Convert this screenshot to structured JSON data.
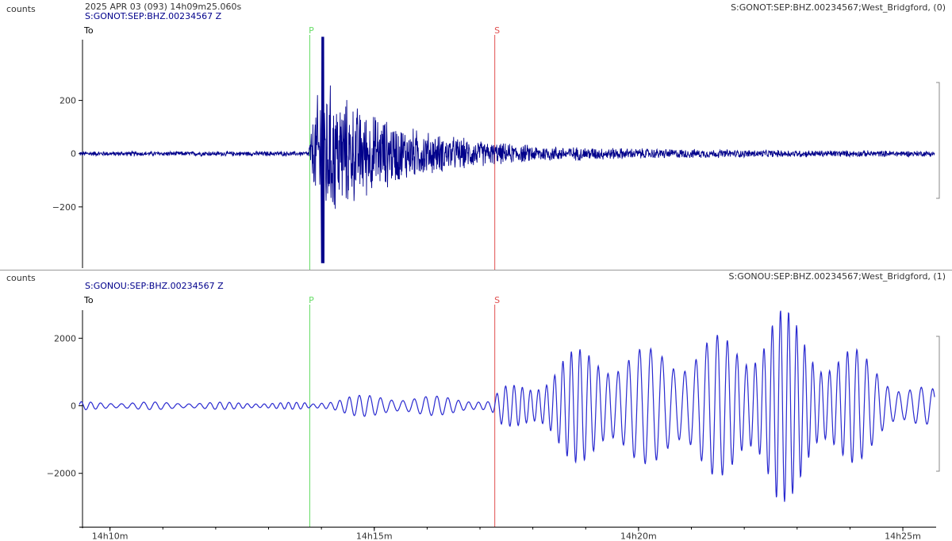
{
  "panels": [
    {
      "units": "counts",
      "header_time": "2025 APR 03 (093)  14h09m25.060s",
      "title": "S:GONOT:SEP:BHZ.00234567 Z",
      "right_label": "S:GONOT:SEP:BHZ.00234567;West_Bridgford, (0)",
      "colors": {
        "trace": "#00008b",
        "P": "#66dd66",
        "S": "#e05050",
        "axis": "#000000"
      }
    },
    {
      "units": "counts",
      "title": "S:GONOU:SEP:BHZ.00234567 Z",
      "right_label": "S:GONOU:SEP:BHZ.00234567;West_Bridgford, (1)",
      "colors": {
        "trace": "#2a2ad0",
        "P": "#66dd66",
        "S": "#e05050",
        "axis": "#000000"
      }
    }
  ],
  "markers": {
    "To": "To",
    "P": "P",
    "S": "S"
  },
  "chart_data": [
    {
      "type": "line",
      "title": "S:GONOT:SEP:BHZ.00234567 Z",
      "ylabel": "counts",
      "x_unit": "minutes after 14h00m",
      "xlim": [
        9.42,
        25.6
      ],
      "ylim": [
        -430,
        470
      ],
      "yticks": [
        200,
        0,
        -200
      ],
      "ytick_labels": [
        "200",
        "0",
        "−200"
      ],
      "picks": {
        "P": 13.78,
        "S": 17.28
      },
      "envelope": [
        {
          "x": 9.42,
          "amp": 10
        },
        {
          "x": 13.75,
          "amp": 10
        },
        {
          "x": 13.85,
          "amp": 160
        },
        {
          "x": 14.0,
          "amp": 330
        },
        {
          "x": 14.3,
          "amp": 250
        },
        {
          "x": 14.8,
          "amp": 180
        },
        {
          "x": 15.5,
          "amp": 120
        },
        {
          "x": 16.2,
          "amp": 80
        },
        {
          "x": 17.3,
          "amp": 45
        },
        {
          "x": 18.5,
          "amp": 30
        },
        {
          "x": 20.0,
          "amp": 22
        },
        {
          "x": 22.0,
          "amp": 16
        },
        {
          "x": 25.6,
          "amp": 12
        }
      ],
      "peak_max": 448,
      "peak_min": -420
    },
    {
      "type": "line",
      "title": "S:GONOU:SEP:BHZ.00234567 Z",
      "ylabel": "counts",
      "x_unit": "minutes after 14h00m",
      "xlim": [
        9.42,
        25.6
      ],
      "ylim": [
        -3580,
        3300
      ],
      "yticks": [
        2000,
        0,
        -2000
      ],
      "ytick_labels": [
        "2000",
        "0",
        "−2000"
      ],
      "xticks": [
        10,
        15,
        20,
        25
      ],
      "xtick_labels": [
        "14h10m",
        "14h15m",
        "14h20m",
        "14h25m"
      ],
      "picks": {
        "P": 13.78,
        "S": 17.28
      },
      "period_min": 0.2,
      "envelope": [
        {
          "x": 9.42,
          "amp": 120
        },
        {
          "x": 13.7,
          "amp": 100
        },
        {
          "x": 13.8,
          "amp": 60
        },
        {
          "x": 14.5,
          "amp": 320
        },
        {
          "x": 16.5,
          "amp": 280
        },
        {
          "x": 17.2,
          "amp": 150
        },
        {
          "x": 17.4,
          "amp": 550
        },
        {
          "x": 18.0,
          "amp": 800
        },
        {
          "x": 18.6,
          "amp": 1600
        },
        {
          "x": 19.5,
          "amp": 1900
        },
        {
          "x": 20.2,
          "amp": 1700
        },
        {
          "x": 20.8,
          "amp": 2000
        },
        {
          "x": 21.5,
          "amp": 2100
        },
        {
          "x": 22.0,
          "amp": 2200
        },
        {
          "x": 22.6,
          "amp": 3100
        },
        {
          "x": 23.4,
          "amp": 2000
        },
        {
          "x": 24.0,
          "amp": 1800
        },
        {
          "x": 24.6,
          "amp": 1200
        },
        {
          "x": 25.0,
          "amp": 700
        },
        {
          "x": 25.6,
          "amp": 500
        }
      ]
    }
  ]
}
